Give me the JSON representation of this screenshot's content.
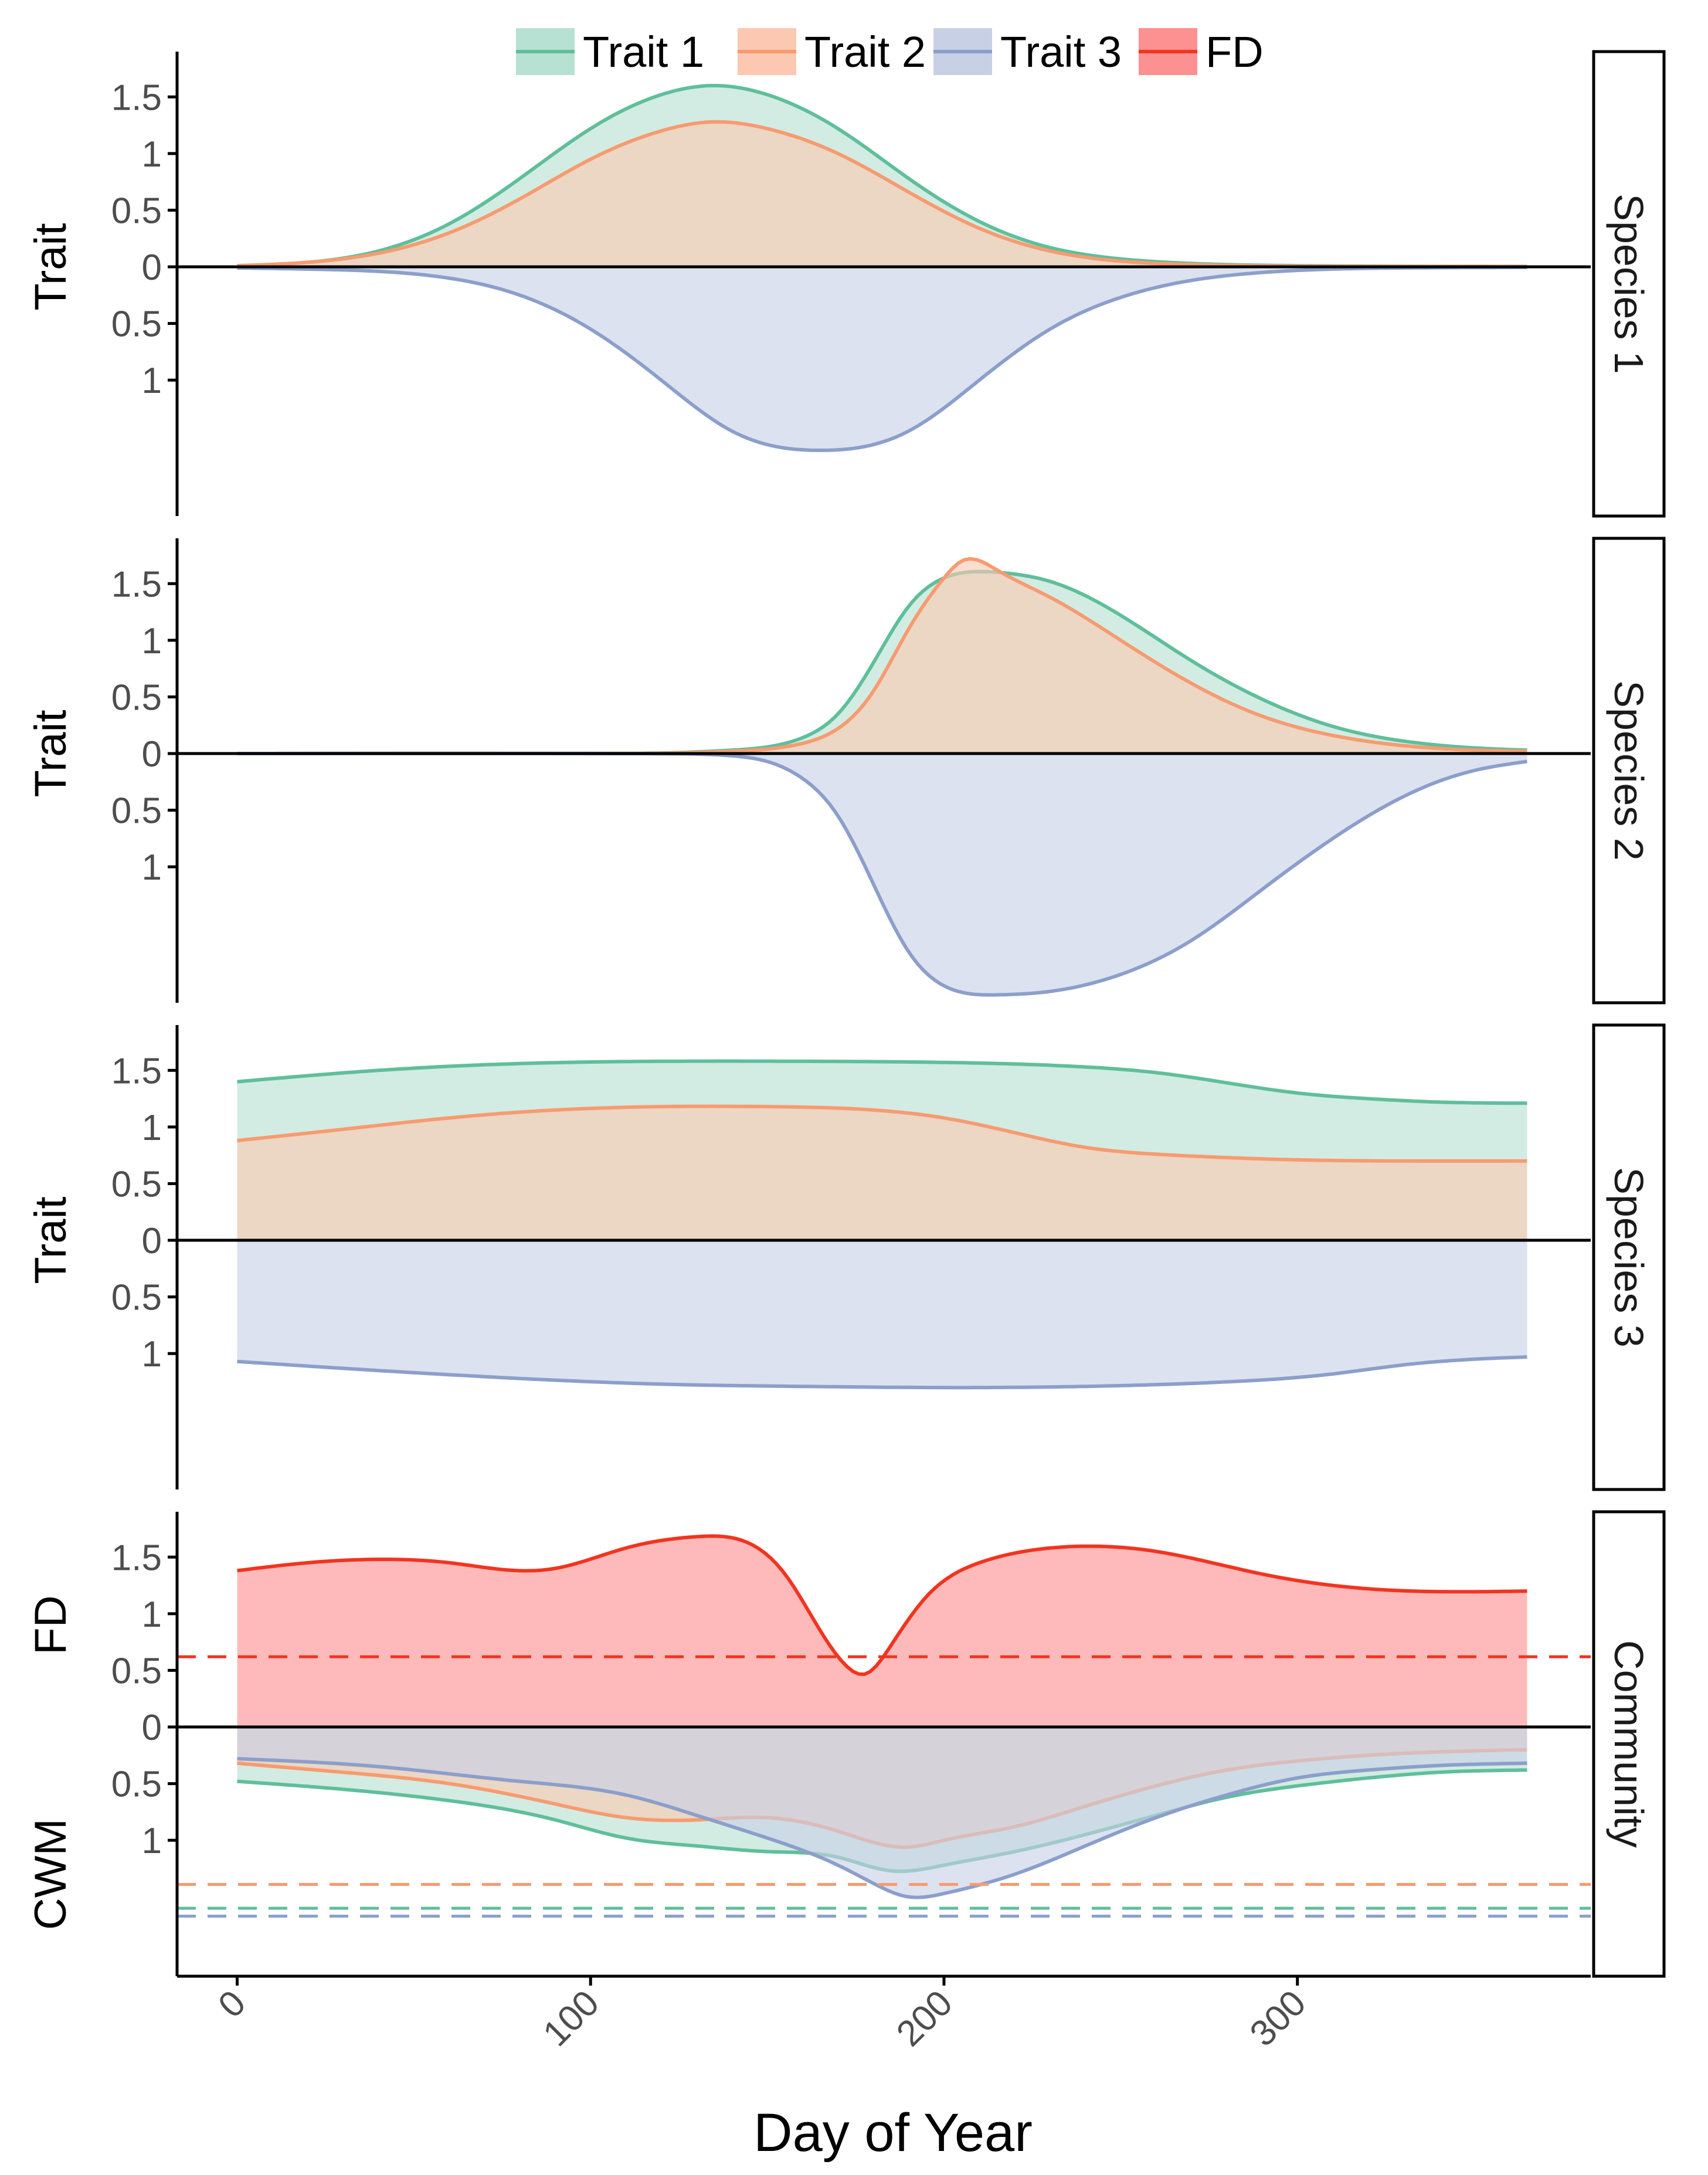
{
  "chart_data": {
    "type": "area",
    "xlabel": "Day of Year",
    "x_ticks": [
      0,
      100,
      200,
      300
    ],
    "x_range": [
      -17,
      383
    ],
    "legend": {
      "placement": "top-center",
      "entries": [
        {
          "name": "Trait 1",
          "line_color": "#5fbf9a",
          "fill_color": "#b7e1d2"
        },
        {
          "name": "Trait 2",
          "line_color": "#f79b70",
          "fill_color": "#fcc8b1"
        },
        {
          "name": "Trait 3",
          "line_color": "#8c9fcb",
          "fill_color": "#c8d0e6"
        },
        {
          "name": "FD",
          "line_color": "#f2341f",
          "fill_color": "#fd9090"
        }
      ]
    },
    "panels": [
      {
        "strip": "Species 1",
        "ylabel_top": "Trait",
        "ylabel_bottom": "",
        "upper_ticks": [
          "1.5",
          "1",
          "0.5",
          "0"
        ],
        "lower_ticks": [
          "0.5",
          "1"
        ],
        "y_range": [
          -2.2,
          1.9
        ],
        "dashed": [],
        "series": [
          {
            "name": "Trait 1",
            "x": [
              0,
              20,
              40,
              60,
              80,
              100,
              120,
              135,
              150,
              170,
              190,
              210,
              230,
              250,
              270,
              300,
              330,
              365
            ],
            "y": [
              0.01,
              0.04,
              0.14,
              0.38,
              0.78,
              1.22,
              1.52,
              1.6,
              1.52,
              1.22,
              0.78,
              0.4,
              0.17,
              0.07,
              0.03,
              0.01,
              0.005,
              0.003
            ]
          },
          {
            "name": "Trait 2",
            "x": [
              0,
              20,
              40,
              60,
              80,
              100,
              120,
              135,
              150,
              170,
              190,
              210,
              230,
              250,
              270,
              300,
              330,
              365
            ],
            "y": [
              0.01,
              0.04,
              0.12,
              0.3,
              0.6,
              0.95,
              1.2,
              1.28,
              1.22,
              1.0,
              0.66,
              0.34,
              0.14,
              0.05,
              0.02,
              0.005,
              0.003,
              0.002
            ]
          },
          {
            "name": "Trait 3",
            "x": [
              0,
              20,
              40,
              60,
              80,
              100,
              120,
              140,
              155,
              165,
              175,
              190,
              210,
              230,
              250,
              270,
              290,
              310,
              330,
              365
            ],
            "y": [
              -0.01,
              -0.02,
              -0.04,
              -0.1,
              -0.25,
              -0.55,
              -1.0,
              -1.45,
              -1.6,
              -1.62,
              -1.6,
              -1.45,
              -1.0,
              -0.55,
              -0.27,
              -0.12,
              -0.05,
              -0.02,
              -0.01,
              -0.005
            ]
          }
        ]
      },
      {
        "strip": "Species 2",
        "ylabel_top": "Trait",
        "ylabel_bottom": "",
        "upper_ticks": [
          "1.5",
          "1",
          "0.5",
          "0"
        ],
        "lower_ticks": [
          "0.5",
          "1"
        ],
        "y_range": [
          -2.2,
          1.9
        ],
        "dashed": [],
        "series": [
          {
            "name": "Trait 1",
            "x": [
              0,
              100,
              120,
              140,
              160,
              170,
              180,
              190,
              200,
              215,
              230,
              250,
              270,
              290,
              310,
              330,
              350,
              365
            ],
            "y": [
              0,
              0.001,
              0.005,
              0.03,
              0.14,
              0.35,
              0.8,
              1.3,
              1.55,
              1.6,
              1.52,
              1.22,
              0.82,
              0.48,
              0.24,
              0.11,
              0.05,
              0.03
            ]
          },
          {
            "name": "Trait 2",
            "x": [
              0,
              100,
              120,
              140,
              160,
              170,
              180,
              190,
              200,
              205,
              215,
              230,
              250,
              270,
              290,
              310,
              330,
              350,
              365
            ],
            "y": [
              0,
              0.001,
              0.003,
              0.02,
              0.09,
              0.22,
              0.55,
              1.1,
              1.55,
              1.7,
              1.62,
              1.38,
              1.0,
              0.62,
              0.33,
              0.16,
              0.07,
              0.03,
              0.02
            ]
          },
          {
            "name": "Trait 3",
            "x": [
              0,
              120,
              140,
              150,
              160,
              170,
              180,
              190,
              200,
              215,
              230,
              250,
              270,
              290,
              310,
              330,
              350,
              365
            ],
            "y": [
              0,
              -0.002,
              -0.02,
              -0.07,
              -0.22,
              -0.55,
              -1.15,
              -1.75,
              -2.05,
              -2.13,
              -2.1,
              -1.95,
              -1.65,
              -1.2,
              -0.75,
              -0.38,
              -0.15,
              -0.07
            ]
          }
        ]
      },
      {
        "strip": "Species 3",
        "ylabel_top": "Trait",
        "ylabel_bottom": "",
        "upper_ticks": [
          "1.5",
          "1",
          "0.5",
          "0"
        ],
        "lower_ticks": [
          "0.5",
          "1"
        ],
        "y_range": [
          -2.2,
          1.9
        ],
        "dashed": [],
        "series": [
          {
            "name": "Trait 1",
            "x": [
              0,
              40,
              80,
              120,
              160,
              200,
              240,
              260,
              280,
              300,
              320,
              340,
              365
            ],
            "y": [
              1.4,
              1.5,
              1.56,
              1.58,
              1.58,
              1.57,
              1.53,
              1.48,
              1.39,
              1.3,
              1.25,
              1.22,
              1.21
            ]
          },
          {
            "name": "Trait 2",
            "x": [
              0,
              30,
              60,
              90,
              120,
              150,
              180,
              200,
              220,
              240,
              260,
              280,
              300,
              330,
              365
            ],
            "y": [
              0.88,
              0.98,
              1.08,
              1.15,
              1.18,
              1.18,
              1.15,
              1.08,
              0.95,
              0.82,
              0.76,
              0.73,
              0.71,
              0.7,
              0.7
            ]
          },
          {
            "name": "Trait 3",
            "x": [
              0,
              40,
              80,
              120,
              160,
              200,
              240,
              280,
              310,
              330,
              350,
              365
            ],
            "y": [
              -1.07,
              -1.15,
              -1.22,
              -1.27,
              -1.29,
              -1.3,
              -1.29,
              -1.25,
              -1.18,
              -1.1,
              -1.05,
              -1.03
            ]
          }
        ]
      },
      {
        "strip": "Community",
        "ylabel_top": "FD",
        "ylabel_bottom": "CWM",
        "upper_ticks": [
          "1.5",
          "1",
          "0.5",
          "0"
        ],
        "lower_ticks": [
          "0.5",
          "1"
        ],
        "y_range": [
          -2.2,
          1.9
        ],
        "dashed": [
          {
            "series": "FD",
            "value": 0.62
          },
          {
            "series": "Trait 2",
            "value": -1.39
          },
          {
            "series": "Trait 1",
            "value": -1.6
          },
          {
            "series": "Trait 3",
            "value": -1.67
          }
        ],
        "series": [
          {
            "name": "Trait 1",
            "x": [
              0,
              30,
              60,
              90,
              110,
              130,
              150,
              170,
              185,
              200,
              220,
              240,
              260,
              280,
              300,
              320,
              340,
              365
            ],
            "y": [
              -0.48,
              -0.55,
              -0.65,
              -0.82,
              -0.98,
              -1.05,
              -1.1,
              -1.15,
              -1.27,
              -1.22,
              -1.1,
              -0.95,
              -0.78,
              -0.62,
              -0.52,
              -0.45,
              -0.4,
              -0.38
            ]
          },
          {
            "name": "Trait 2",
            "x": [
              0,
              30,
              60,
              90,
              110,
              130,
              150,
              170,
              190,
              200,
              220,
              240,
              260,
              280,
              300,
              320,
              340,
              365
            ],
            "y": [
              -0.32,
              -0.4,
              -0.5,
              -0.68,
              -0.8,
              -0.82,
              -0.8,
              -0.92,
              -1.06,
              -1.0,
              -0.88,
              -0.7,
              -0.52,
              -0.38,
              -0.3,
              -0.25,
              -0.22,
              -0.2
            ]
          },
          {
            "name": "Trait 3",
            "x": [
              0,
              40,
              80,
              110,
              130,
              150,
              170,
              180,
              190,
              200,
              220,
              240,
              260,
              280,
              300,
              320,
              340,
              365
            ],
            "y": [
              -0.28,
              -0.35,
              -0.48,
              -0.6,
              -0.78,
              -0.98,
              -1.22,
              -1.38,
              -1.5,
              -1.47,
              -1.3,
              -1.05,
              -0.8,
              -0.6,
              -0.45,
              -0.38,
              -0.34,
              -0.32
            ]
          },
          {
            "name": "FD",
            "x": [
              0,
              20,
              40,
              60,
              80,
              90,
              110,
              130,
              145,
              155,
              165,
              172,
              178,
              185,
              195,
              210,
              230,
              260,
              290,
              320,
              365
            ],
            "y": [
              1.38,
              1.45,
              1.48,
              1.45,
              1.38,
              1.4,
              1.58,
              1.68,
              1.62,
              1.35,
              0.85,
              0.55,
              0.47,
              0.72,
              1.15,
              1.45,
              1.58,
              1.55,
              1.35,
              1.22,
              1.2
            ]
          }
        ]
      }
    ]
  }
}
